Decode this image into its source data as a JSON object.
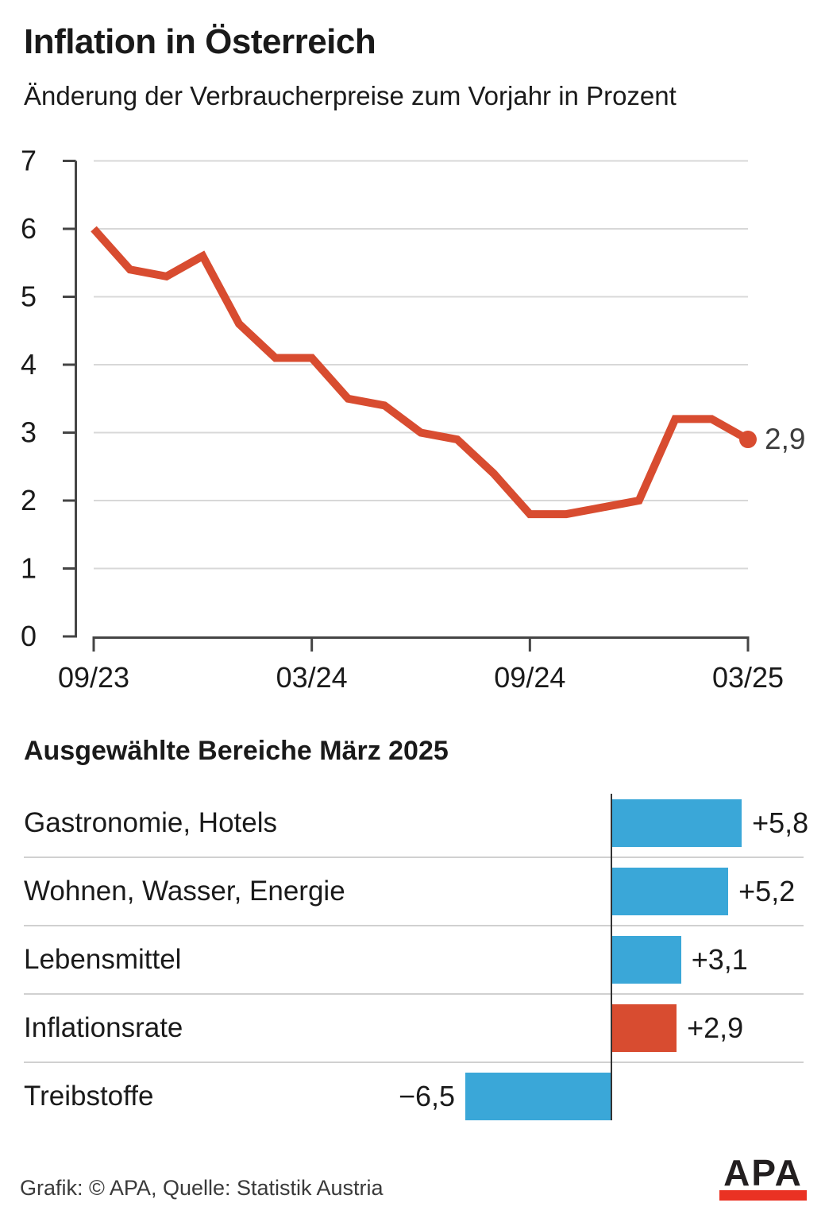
{
  "header": {
    "title": "Inflation in Österreich",
    "subtitle": "Änderung der Verbraucherpreise zum Vorjahr in Prozent"
  },
  "chart_data": [
    {
      "type": "line",
      "title": "Inflation in Österreich",
      "x": [
        "09/23",
        "10/23",
        "11/23",
        "12/23",
        "01/24",
        "02/24",
        "03/24",
        "04/24",
        "05/24",
        "06/24",
        "07/24",
        "08/24",
        "09/24",
        "10/24",
        "11/24",
        "12/24",
        "01/25",
        "02/25",
        "03/25"
      ],
      "values": [
        6.0,
        5.4,
        5.3,
        5.6,
        4.6,
        4.1,
        4.1,
        3.5,
        3.4,
        3.0,
        2.9,
        2.4,
        1.8,
        1.8,
        1.9,
        2.0,
        3.2,
        3.2,
        2.9
      ],
      "ylim": [
        0,
        7
      ],
      "y_ticks": [
        0,
        1,
        2,
        3,
        4,
        5,
        6,
        7
      ],
      "x_tick_indices": [
        0,
        6,
        12,
        18
      ],
      "x_tick_labels": [
        "09/23",
        "03/24",
        "09/24",
        "03/25"
      ],
      "grid": true,
      "line_color": "#d84c30",
      "end_label": "2,9",
      "end_value": 2.9
    },
    {
      "type": "bar",
      "orientation": "horizontal",
      "title": "Ausgewählte Bereiche März 2025",
      "categories": [
        "Gastronomie, Hotels",
        "Wohnen, Wasser, Energie",
        "Lebensmittel",
        "Inflationsrate",
        "Treibstoffe"
      ],
      "values": [
        5.8,
        5.2,
        3.1,
        2.9,
        -6.5
      ],
      "value_labels": [
        "+5,8",
        "+5,2",
        "+3,1",
        "+2,9",
        "−6,5"
      ],
      "colors": [
        "#3aa7d8",
        "#3aa7d8",
        "#3aa7d8",
        "#d84c30",
        "#3aa7d8"
      ]
    }
  ],
  "footer": {
    "credit": "Grafik: © APA, Quelle: Statistik Austria",
    "logo_text": "APA",
    "logo_red": "#ea3223",
    "logo_black": "#231f20"
  }
}
